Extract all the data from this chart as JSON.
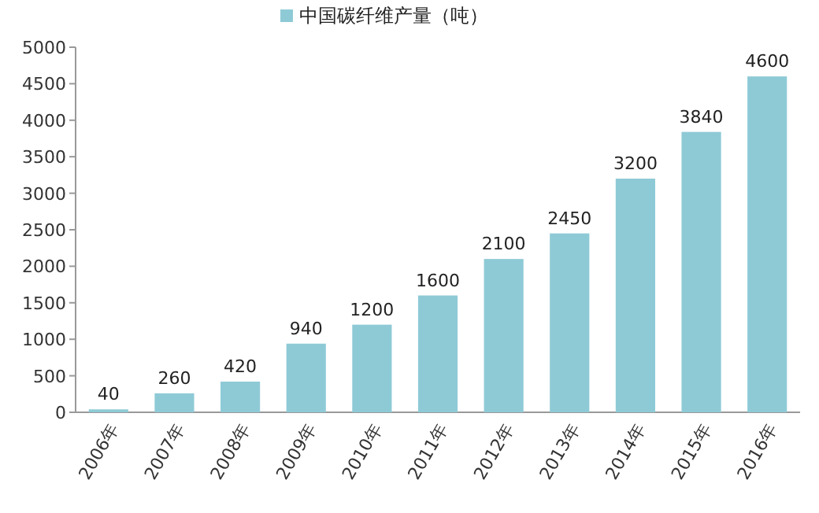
{
  "chart_data": {
    "type": "bar",
    "categories": [
      "2006年",
      "2007年",
      "2008年",
      "2009年",
      "2010年",
      "2011年",
      "2012年",
      "2013年",
      "2014年",
      "2015年",
      "2016年"
    ],
    "series": [
      {
        "name": "中国碳纤维产量（吨）",
        "color": "#8ecad6",
        "values": [
          40,
          260,
          420,
          940,
          1200,
          1600,
          2100,
          2450,
          3200,
          3840,
          4600
        ]
      }
    ],
    "ylim": [
      0,
      5000
    ],
    "yticks": [
      0,
      500,
      1000,
      1500,
      2000,
      2500,
      3000,
      3500,
      4000,
      4500,
      5000
    ],
    "data_labels": true,
    "legend": "top",
    "grid": false
  }
}
